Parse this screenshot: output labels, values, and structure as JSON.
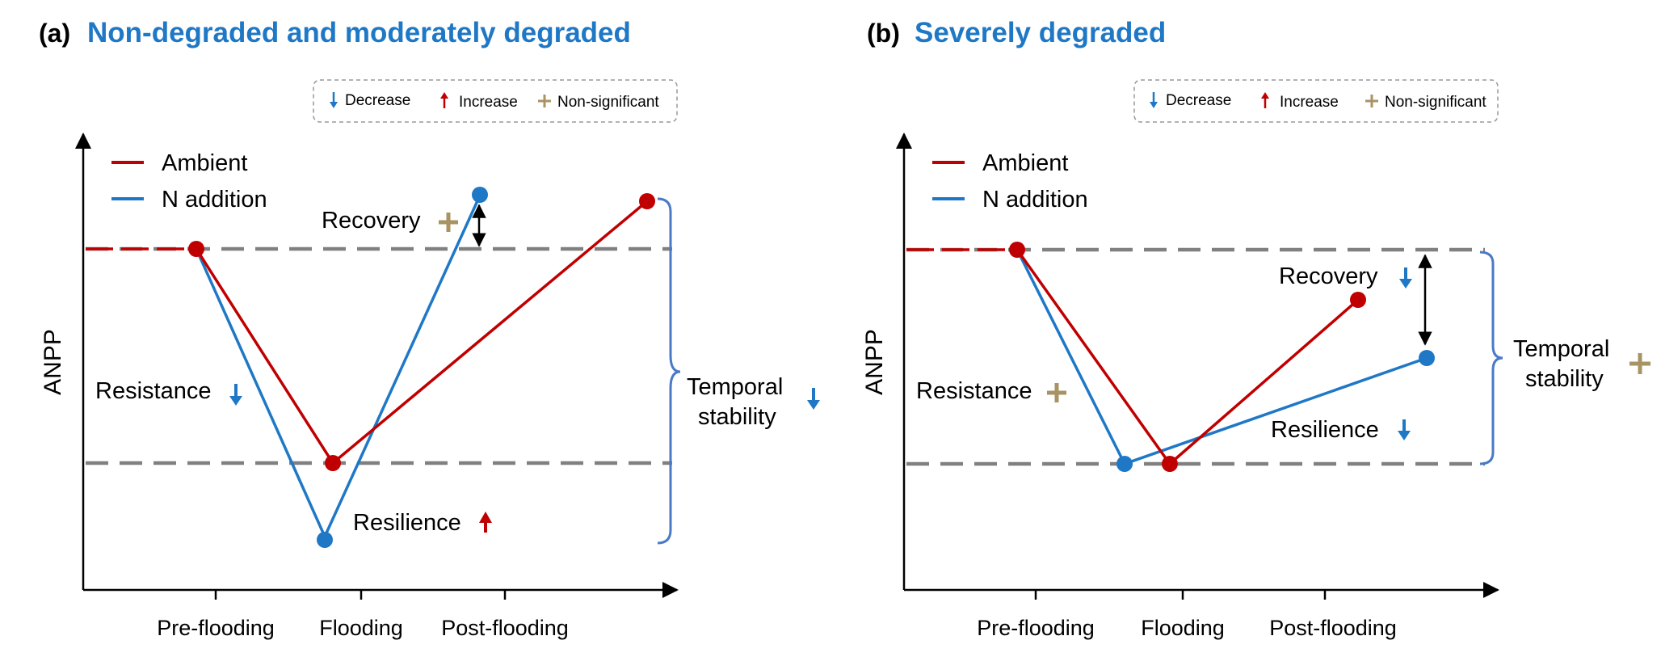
{
  "colors": {
    "ambient": "#c00000",
    "n_addition": "#1f78c6",
    "decrease": "#1f78c6",
    "increase": "#c00000",
    "non_significant": "#a89363",
    "dashed": "#808080"
  },
  "sig_legend": {
    "decrease": "Decrease",
    "increase": "Increase",
    "non_significant": "Non-significant"
  },
  "panel_a": {
    "letter": "(a)",
    "title": "Non-degraded and moderately degraded",
    "y_axis_label": "ANPP",
    "x_ticks": [
      "Pre-flooding",
      "Flooding",
      "Post-flooding"
    ],
    "legend": {
      "ambient": "Ambient",
      "n_addition": "N addition"
    },
    "recovery": {
      "label": "Recovery",
      "sig": "non-significant"
    },
    "resistance": {
      "label": "Resistance",
      "sig": "decrease"
    },
    "resilience": {
      "label": "Resilience",
      "sig": "increase"
    },
    "temporal_stability": {
      "line1": "Temporal",
      "line2": "stability",
      "sig": "decrease"
    }
  },
  "panel_b": {
    "letter": "(b)",
    "title": "Severely degraded",
    "y_axis_label": "ANPP",
    "x_ticks": [
      "Pre-flooding",
      "Flooding",
      "Post-flooding"
    ],
    "legend": {
      "ambient": "Ambient",
      "n_addition": "N addition"
    },
    "recovery": {
      "label": "Recovery",
      "sig": "decrease"
    },
    "resistance": {
      "label": "Resistance",
      "sig": "non-significant"
    },
    "resilience": {
      "label": "Resilience",
      "sig": "decrease"
    },
    "temporal_stability": {
      "line1": "Temporal",
      "line2": "stability",
      "sig": "non-significant"
    }
  }
}
